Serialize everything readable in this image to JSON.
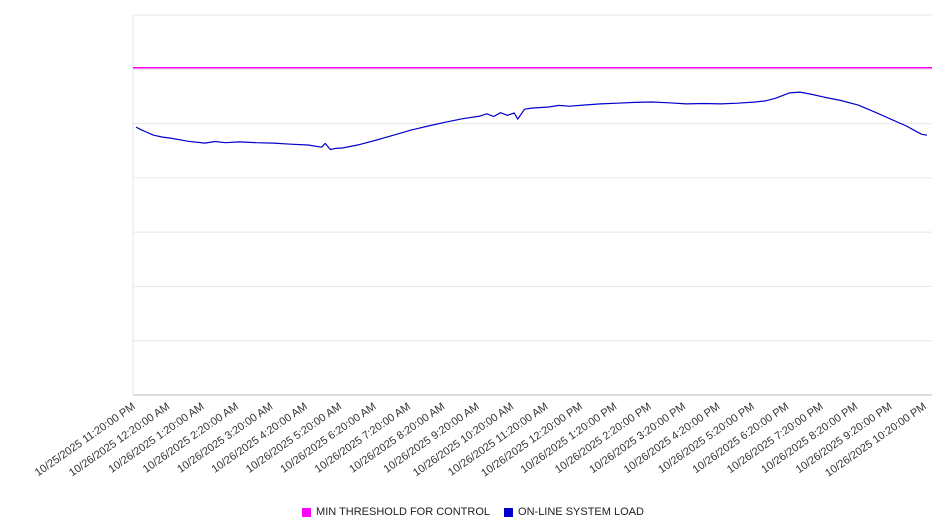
{
  "chart_data": {
    "type": "line",
    "title": "",
    "xlabel": "",
    "ylabel": "",
    "ylim": [
      0,
      100
    ],
    "y_axis_labels_visible": false,
    "grid": "horizontal",
    "y_gridline_count": 8,
    "legend_position": "bottom-center",
    "colors": {
      "grid": "#e6e6e6",
      "axis": "#bbbbbb",
      "tick_label": "#333333",
      "background": "#ffffff"
    },
    "categories": [
      "10/25/2025 11:20:00 PM",
      "10/26/2025 12:20:00 AM",
      "10/26/2025 1:20:00 AM",
      "10/26/2025 2:20:00 AM",
      "10/26/2025 3:20:00 AM",
      "10/26/2025 4:20:00 AM",
      "10/26/2025 5:20:00 AM",
      "10/26/2025 6:20:00 AM",
      "10/26/2025 7:20:00 AM",
      "10/26/2025 8:20:00 AM",
      "10/26/2025 9:20:00 AM",
      "10/26/2025 10:20:00 AM",
      "10/26/2025 11:20:00 AM",
      "10/26/2025 12:20:00 PM",
      "10/26/2025 1:20:00 PM",
      "10/26/2025 2:20:00 PM",
      "10/26/2025 3:20:00 PM",
      "10/26/2025 4:20:00 PM",
      "10/26/2025 5:20:00 PM",
      "10/26/2025 6:20:00 PM",
      "10/26/2025 7:20:00 PM",
      "10/26/2025 8:20:00 PM",
      "10/26/2025 9:20:00 PM",
      "10/26/2025 10:20:00 PM"
    ],
    "series": [
      {
        "name": "MIN THRESHOLD FOR CONTROL",
        "color": "#ff00ff",
        "style": "horizontal-threshold",
        "value": 86.1
      },
      {
        "name": "ON-LINE SYSTEM LOAD",
        "color": "#0000cc",
        "style": "line",
        "x_hours": [
          0,
          0.15,
          0.3,
          0.5,
          0.75,
          1,
          1.5,
          2,
          2.3,
          2.6,
          3,
          3.5,
          4,
          4.5,
          5,
          5.4,
          5.5,
          5.65,
          5.8,
          6,
          6.5,
          7,
          7.5,
          8,
          8.5,
          9,
          9.5,
          10,
          10.2,
          10.4,
          10.6,
          10.8,
          11,
          11.1,
          11.3,
          11.5,
          12,
          12.3,
          12.6,
          13,
          13.5,
          14,
          14.5,
          15,
          15.5,
          16,
          16.5,
          17,
          17.5,
          18,
          18.3,
          18.6,
          19,
          19.3,
          19.6,
          20,
          20.5,
          21,
          21.5,
          22,
          22.4,
          22.7,
          22.85,
          23
        ],
        "values": [
          70.5,
          69.8,
          69.2,
          68.4,
          67.9,
          67.6,
          66.8,
          66.3,
          66.7,
          66.4,
          66.6,
          66.4,
          66.3,
          66.0,
          65.8,
          65.2,
          66.2,
          64.6,
          64.9,
          65.0,
          65.9,
          67.1,
          68.4,
          69.7,
          70.8,
          71.8,
          72.7,
          73.4,
          74.0,
          73.3,
          74.3,
          73.6,
          74.2,
          72.6,
          75.2,
          75.5,
          75.8,
          76.2,
          76.0,
          76.3,
          76.6,
          76.8,
          77.0,
          77.1,
          76.9,
          76.6,
          76.7,
          76.6,
          76.8,
          77.1,
          77.4,
          78.1,
          79.5,
          79.7,
          79.2,
          78.4,
          77.5,
          76.3,
          74.4,
          72.4,
          70.8,
          69.3,
          68.6,
          68.4
        ]
      }
    ]
  }
}
